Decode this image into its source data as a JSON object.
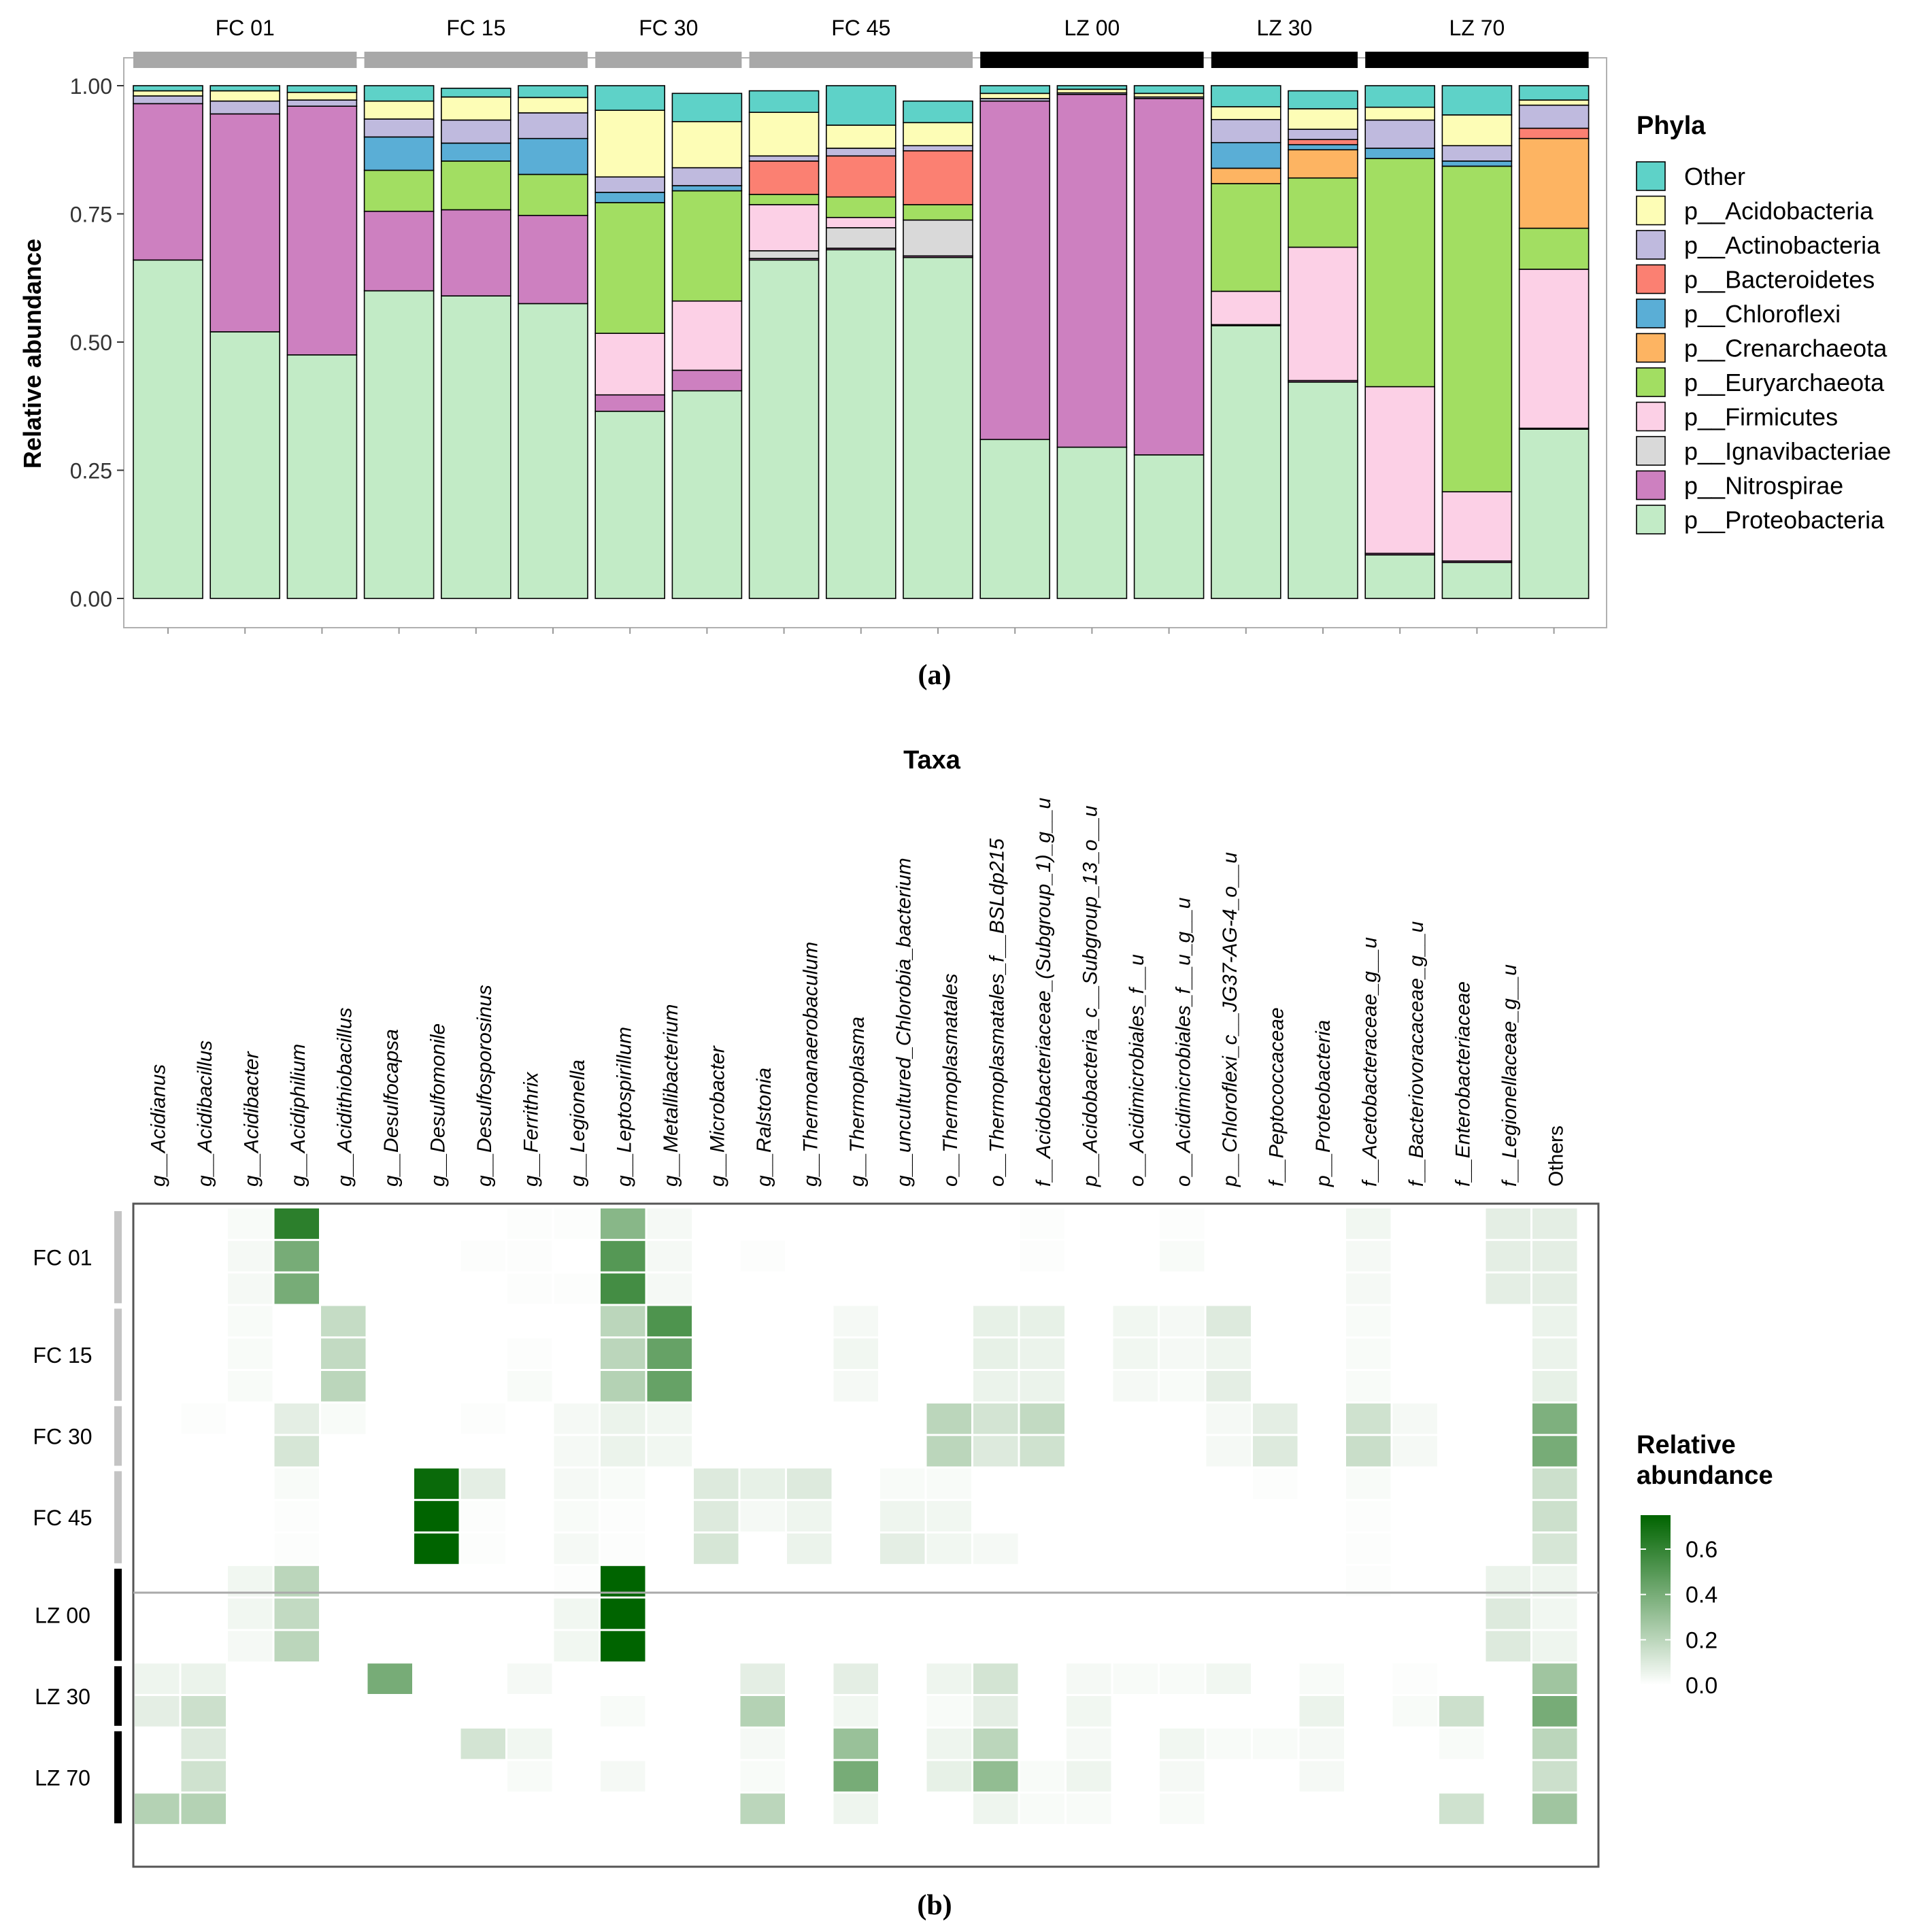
{
  "figure": {
    "panel_a_label": "(a)",
    "panel_b_label": "(b)"
  },
  "chart_data": [
    {
      "type": "bar",
      "stacked": true,
      "panel": "a",
      "ylabel": "Relative abundance",
      "ylim": [
        0,
        1
      ],
      "yticks": [
        "0.00",
        "0.25",
        "0.50",
        "0.75",
        "1.00"
      ],
      "groups": [
        {
          "name": "FC 01",
          "strip": "grey",
          "n": 3
        },
        {
          "name": "FC 15",
          "strip": "grey",
          "n": 3
        },
        {
          "name": "FC 30",
          "strip": "grey",
          "n": 2
        },
        {
          "name": "FC 45",
          "strip": "grey",
          "n": 3
        },
        {
          "name": "LZ 00",
          "strip": "black",
          "n": 3
        },
        {
          "name": "LZ 30",
          "strip": "black",
          "n": 2
        },
        {
          "name": "LZ 70",
          "strip": "black",
          "n": 3
        }
      ],
      "legend_title": "Phyla",
      "legend": [
        "Other",
        "p__Acidobacteria",
        "p__Actinobacteria",
        "p__Bacteroidetes",
        "p__Chloroflexi",
        "p__Crenarchaeota",
        "p__Euryarchaeota",
        "p__Firmicutes",
        "p__Ignavibacteriae",
        "p__Nitrospirae",
        "p__Proteobacteria"
      ],
      "colors": {
        "Other": "#5ed2c8",
        "p__Acidobacteria": "#fdfdb6",
        "p__Actinobacteria": "#bfbade",
        "p__Bacteroidetes": "#fb8072",
        "p__Chloroflexi": "#5aaed6",
        "p__Crenarchaeota": "#fdb462",
        "p__Euryarchaeota": "#a2de62",
        "p__Firmicutes": "#fcd0e6",
        "p__Ignavibacteriae": "#d9d9d9",
        "p__Nitrospirae": "#cd80c0",
        "p__Proteobacteria": "#c2ebc6",
        "black": "#000000",
        "grey": "#a8a8a8"
      },
      "stack_order": [
        "p__Proteobacteria",
        "p__Nitrospirae",
        "p__Ignavibacteriae",
        "p__Firmicutes",
        "p__Euryarchaeota",
        "p__Crenarchaeota",
        "p__Chloroflexi",
        "p__Bacteroidetes",
        "p__Actinobacteria",
        "p__Acidobacteria",
        "Other"
      ],
      "series": [
        {
          "name": "p__Proteobacteria",
          "values": [
            0.66,
            0.52,
            0.475,
            0.6,
            0.59,
            0.575,
            0.365,
            0.405,
            0.66,
            0.68,
            0.665,
            0.31,
            0.295,
            0.28,
            0.532,
            0.422,
            0.085,
            0.07,
            0.33
          ]
        },
        {
          "name": "p__Nitrospirae",
          "values": [
            0.305,
            0.425,
            0.485,
            0.155,
            0.168,
            0.172,
            0.032,
            0.04,
            0.003,
            0.003,
            0.003,
            0.66,
            0.688,
            0.695,
            0.002,
            0.003,
            0.003,
            0.003,
            0.002
          ]
        },
        {
          "name": "p__Ignavibacteriae",
          "values": [
            0.0,
            0.0,
            0.0,
            0.0,
            0.0,
            0.0,
            0.0,
            0.0,
            0.015,
            0.04,
            0.07,
            0.0,
            0.0,
            0.0,
            0.0,
            0.0,
            0.0,
            0.0,
            0.0
          ]
        },
        {
          "name": "p__Firmicutes",
          "values": [
            0.0,
            0.0,
            0.0,
            0.0,
            0.0,
            0.0,
            0.12,
            0.135,
            0.09,
            0.02,
            0.0,
            0.0,
            0.0,
            0.0,
            0.065,
            0.26,
            0.325,
            0.135,
            0.31
          ]
        },
        {
          "name": "p__Euryarchaeota",
          "values": [
            0.0,
            0.0,
            0.0,
            0.08,
            0.095,
            0.08,
            0.255,
            0.215,
            0.02,
            0.04,
            0.03,
            0.0,
            0.0,
            0.0,
            0.21,
            0.135,
            0.445,
            0.635,
            0.08
          ]
        },
        {
          "name": "p__Crenarchaeota",
          "values": [
            0.0,
            0.0,
            0.0,
            0.0,
            0.0,
            0.0,
            0.0,
            0.0,
            0.0,
            0.0,
            0.0,
            0.0,
            0.0,
            0.0,
            0.03,
            0.055,
            0.0,
            0.0,
            0.175
          ]
        },
        {
          "name": "p__Chloroflexi",
          "values": [
            0.0,
            0.0,
            0.0,
            0.065,
            0.035,
            0.07,
            0.02,
            0.01,
            0.0,
            0.0,
            0.0,
            0.0,
            0.0,
            0.0,
            0.05,
            0.01,
            0.02,
            0.01,
            0.0
          ]
        },
        {
          "name": "p__Bacteroidetes",
          "values": [
            0.0,
            0.0,
            0.0,
            0.0,
            0.0,
            0.0,
            0.0,
            0.0,
            0.065,
            0.08,
            0.105,
            0.0,
            0.0,
            0.0,
            0.0,
            0.01,
            0.0,
            0.0,
            0.02
          ]
        },
        {
          "name": "p__Actinobacteria",
          "values": [
            0.015,
            0.025,
            0.012,
            0.035,
            0.045,
            0.05,
            0.03,
            0.035,
            0.01,
            0.015,
            0.01,
            0.005,
            0.003,
            0.003,
            0.045,
            0.02,
            0.055,
            0.03,
            0.045
          ]
        },
        {
          "name": "p__Acidobacteria",
          "values": [
            0.01,
            0.02,
            0.015,
            0.035,
            0.045,
            0.03,
            0.13,
            0.09,
            0.085,
            0.045,
            0.045,
            0.01,
            0.007,
            0.007,
            0.025,
            0.04,
            0.025,
            0.06,
            0.01
          ]
        },
        {
          "name": "Other",
          "values": [
            0.01,
            0.01,
            0.013,
            0.03,
            0.017,
            0.023,
            0.048,
            0.055,
            0.042,
            0.077,
            0.042,
            0.015,
            0.007,
            0.015,
            0.041,
            0.035,
            0.042,
            0.057,
            0.028
          ]
        }
      ]
    },
    {
      "type": "heatmap",
      "panel": "b",
      "xtitle": "Taxa",
      "taxa": [
        "g__Acidianus",
        "g__Acidibacillus",
        "g__Acidibacter",
        "g__Acidiphilium",
        "g__Acidithiobacillus",
        "g__Desulfocapsa",
        "g__Desulfomonile",
        "g__Desulfosporosinus",
        "g__Ferrithrix",
        "g__Legionella",
        "g__Leptospirillum",
        "g__Metallibacterium",
        "g__Microbacter",
        "g__Ralstonia",
        "g__Thermoanaerobaculum",
        "g__Thermoplasma",
        "g__uncultured_Chlorobia_bacterium",
        "o__Thermoplasmatales",
        "o__Thermoplasmatales_f__BSLdp215",
        "f__Acidobacteriaceae_(Subgroup_1)_g__u",
        "p__Acidobacteria_c__Subgroup_13_o__u",
        "o__Acidimicrobiales_f__u",
        "o__Acidimicrobiales_f__u_g__u",
        "p__Chloroflexi_c__JG37-AG-4_o__u",
        "f__Peptococcaceae",
        "p__Proteobacteria",
        "f__Acetobacteraceae_g__u",
        "f__Bacteriovoracaceae_g__u",
        "f__Enterobacteriaceae",
        "f__Legionellaceae_g__u",
        "Others"
      ],
      "row_groups": [
        {
          "name": "FC 01",
          "n": 3,
          "strip": "grey"
        },
        {
          "name": "FC 15",
          "n": 3,
          "strip": "grey"
        },
        {
          "name": "FC 30",
          "n": 2,
          "strip": "grey"
        },
        {
          "name": "FC 45",
          "n": 3,
          "strip": "grey"
        },
        {
          "name": "LZ 00",
          "n": 3,
          "strip": "black"
        },
        {
          "name": "LZ 30",
          "n": 2,
          "strip": "black"
        },
        {
          "name": "LZ 70",
          "n": 3,
          "strip": "black"
        }
      ],
      "matrix": [
        [
          0.0,
          0.0,
          0.02,
          0.62,
          0.0,
          0.0,
          0.0,
          0.0,
          0.01,
          0.01,
          0.35,
          0.03,
          0.0,
          0.0,
          0.0,
          0.0,
          0.0,
          0.0,
          0.0,
          0.01,
          0.0,
          0.0,
          0.01,
          0.0,
          0.0,
          0.0,
          0.04,
          0.0,
          0.0,
          0.08,
          0.08
        ],
        [
          0.0,
          0.0,
          0.03,
          0.4,
          0.0,
          0.0,
          0.0,
          0.01,
          0.01,
          0.0,
          0.5,
          0.03,
          0.0,
          0.01,
          0.0,
          0.0,
          0.0,
          0.0,
          0.0,
          0.01,
          0.0,
          0.0,
          0.02,
          0.0,
          0.0,
          0.0,
          0.03,
          0.0,
          0.0,
          0.08,
          0.08
        ],
        [
          0.0,
          0.0,
          0.03,
          0.4,
          0.0,
          0.0,
          0.0,
          0.0,
          0.01,
          0.01,
          0.55,
          0.03,
          0.0,
          0.0,
          0.0,
          0.0,
          0.0,
          0.0,
          0.0,
          0.0,
          0.0,
          0.0,
          0.0,
          0.0,
          0.0,
          0.0,
          0.03,
          0.0,
          0.0,
          0.08,
          0.08
        ],
        [
          0.0,
          0.0,
          0.02,
          0.0,
          0.17,
          0.0,
          0.0,
          0.0,
          0.0,
          0.0,
          0.2,
          0.52,
          0.0,
          0.0,
          0.0,
          0.03,
          0.0,
          0.0,
          0.07,
          0.07,
          0.0,
          0.04,
          0.03,
          0.1,
          0.0,
          0.0,
          0.02,
          0.0,
          0.0,
          0.0,
          0.06
        ],
        [
          0.0,
          0.0,
          0.02,
          0.0,
          0.18,
          0.0,
          0.0,
          0.0,
          0.01,
          0.0,
          0.2,
          0.45,
          0.0,
          0.0,
          0.0,
          0.04,
          0.0,
          0.0,
          0.07,
          0.06,
          0.0,
          0.04,
          0.03,
          0.05,
          0.0,
          0.0,
          0.02,
          0.0,
          0.0,
          0.0,
          0.06
        ],
        [
          0.0,
          0.0,
          0.02,
          0.0,
          0.2,
          0.0,
          0.0,
          0.0,
          0.02,
          0.0,
          0.22,
          0.45,
          0.0,
          0.0,
          0.0,
          0.03,
          0.0,
          0.0,
          0.06,
          0.06,
          0.0,
          0.03,
          0.02,
          0.08,
          0.0,
          0.0,
          0.02,
          0.0,
          0.0,
          0.0,
          0.07
        ],
        [
          0.0,
          0.01,
          0.0,
          0.08,
          0.02,
          0.0,
          0.0,
          0.01,
          0.0,
          0.03,
          0.06,
          0.04,
          0.0,
          0.0,
          0.0,
          0.0,
          0.0,
          0.2,
          0.13,
          0.18,
          0.0,
          0.0,
          0.0,
          0.03,
          0.08,
          0.0,
          0.14,
          0.03,
          0.0,
          0.0,
          0.38
        ],
        [
          0.0,
          0.0,
          0.0,
          0.12,
          0.0,
          0.0,
          0.0,
          0.0,
          0.0,
          0.03,
          0.06,
          0.04,
          0.0,
          0.0,
          0.0,
          0.0,
          0.0,
          0.2,
          0.1,
          0.14,
          0.0,
          0.0,
          0.0,
          0.03,
          0.1,
          0.0,
          0.16,
          0.03,
          0.0,
          0.0,
          0.4
        ],
        [
          0.0,
          0.0,
          0.0,
          0.02,
          0.0,
          0.0,
          0.72,
          0.08,
          0.0,
          0.03,
          0.02,
          0.0,
          0.1,
          0.07,
          0.1,
          0.0,
          0.02,
          0.02,
          0.0,
          0.0,
          0.0,
          0.0,
          0.0,
          0.0,
          0.01,
          0.0,
          0.02,
          0.0,
          0.0,
          0.0,
          0.15
        ],
        [
          0.0,
          0.0,
          0.0,
          0.01,
          0.0,
          0.0,
          0.75,
          0.01,
          0.0,
          0.02,
          0.01,
          0.0,
          0.1,
          0.03,
          0.05,
          0.0,
          0.05,
          0.04,
          0.0,
          0.0,
          0.0,
          0.0,
          0.0,
          0.0,
          0.0,
          0.0,
          0.01,
          0.0,
          0.0,
          0.0,
          0.15
        ],
        [
          0.0,
          0.0,
          0.0,
          0.01,
          0.0,
          0.0,
          0.75,
          0.01,
          0.0,
          0.03,
          0.01,
          0.0,
          0.12,
          0.0,
          0.06,
          0.0,
          0.08,
          0.04,
          0.03,
          0.0,
          0.0,
          0.0,
          0.0,
          0.0,
          0.0,
          0.0,
          0.01,
          0.0,
          0.0,
          0.0,
          0.12
        ],
        [
          0.0,
          0.0,
          0.04,
          0.2,
          0.0,
          0.0,
          0.0,
          0.0,
          0.0,
          0.01,
          0.78,
          0.0,
          0.0,
          0.0,
          0.0,
          0.0,
          0.0,
          0.0,
          0.0,
          0.0,
          0.0,
          0.0,
          0.0,
          0.0,
          0.0,
          0.0,
          0.01,
          0.0,
          0.0,
          0.06,
          0.05
        ],
        [
          0.0,
          0.0,
          0.04,
          0.18,
          0.0,
          0.0,
          0.0,
          0.0,
          0.0,
          0.04,
          0.8,
          0.0,
          0.0,
          0.0,
          0.0,
          0.0,
          0.0,
          0.0,
          0.0,
          0.0,
          0.0,
          0.0,
          0.0,
          0.0,
          0.0,
          0.0,
          0.0,
          0.0,
          0.0,
          0.1,
          0.04
        ],
        [
          0.0,
          0.0,
          0.03,
          0.2,
          0.0,
          0.0,
          0.0,
          0.0,
          0.0,
          0.04,
          0.8,
          0.0,
          0.0,
          0.0,
          0.0,
          0.0,
          0.0,
          0.0,
          0.0,
          0.0,
          0.0,
          0.0,
          0.0,
          0.0,
          0.0,
          0.0,
          0.0,
          0.0,
          0.0,
          0.1,
          0.05
        ],
        [
          0.05,
          0.06,
          0.0,
          0.0,
          0.0,
          0.4,
          0.0,
          0.0,
          0.03,
          0.0,
          0.0,
          0.0,
          0.0,
          0.08,
          0.0,
          0.08,
          0.0,
          0.05,
          0.13,
          0.0,
          0.03,
          0.02,
          0.02,
          0.04,
          0.0,
          0.02,
          0.0,
          0.01,
          0.0,
          0.0,
          0.28
        ],
        [
          0.08,
          0.15,
          0.0,
          0.0,
          0.0,
          0.0,
          0.0,
          0.0,
          0.0,
          0.0,
          0.02,
          0.0,
          0.0,
          0.22,
          0.0,
          0.04,
          0.0,
          0.02,
          0.08,
          0.0,
          0.04,
          0.0,
          0.0,
          0.0,
          0.0,
          0.06,
          0.0,
          0.02,
          0.15,
          0.0,
          0.4
        ],
        [
          0.0,
          0.1,
          0.0,
          0.0,
          0.0,
          0.0,
          0.0,
          0.13,
          0.04,
          0.0,
          0.0,
          0.0,
          0.0,
          0.03,
          0.0,
          0.3,
          0.0,
          0.05,
          0.2,
          0.0,
          0.03,
          0.0,
          0.04,
          0.02,
          0.02,
          0.03,
          0.0,
          0.0,
          0.02,
          0.0,
          0.2
        ],
        [
          0.0,
          0.14,
          0.0,
          0.0,
          0.0,
          0.0,
          0.0,
          0.0,
          0.02,
          0.0,
          0.03,
          0.0,
          0.0,
          0.02,
          0.0,
          0.4,
          0.0,
          0.07,
          0.32,
          0.02,
          0.05,
          0.0,
          0.03,
          0.0,
          0.0,
          0.03,
          0.0,
          0.0,
          0.0,
          0.0,
          0.15
        ],
        [
          0.22,
          0.22,
          0.0,
          0.0,
          0.0,
          0.0,
          0.0,
          0.0,
          0.0,
          0.0,
          0.0,
          0.0,
          0.0,
          0.2,
          0.0,
          0.05,
          0.0,
          0.0,
          0.05,
          0.02,
          0.02,
          0.0,
          0.02,
          0.0,
          0.0,
          0.0,
          0.0,
          0.0,
          0.14,
          0.0,
          0.28
        ]
      ],
      "legend_title_line1": "Relative",
      "legend_title_line2": "abundance",
      "legend_ticks": [
        "0.0",
        "0.2",
        "0.4",
        "0.6"
      ],
      "legend_tick_values": [
        0.0,
        0.2,
        0.4,
        0.6
      ],
      "scale_max": 0.75,
      "low_color": "#ffffff",
      "high_color": "#006400"
    }
  ]
}
